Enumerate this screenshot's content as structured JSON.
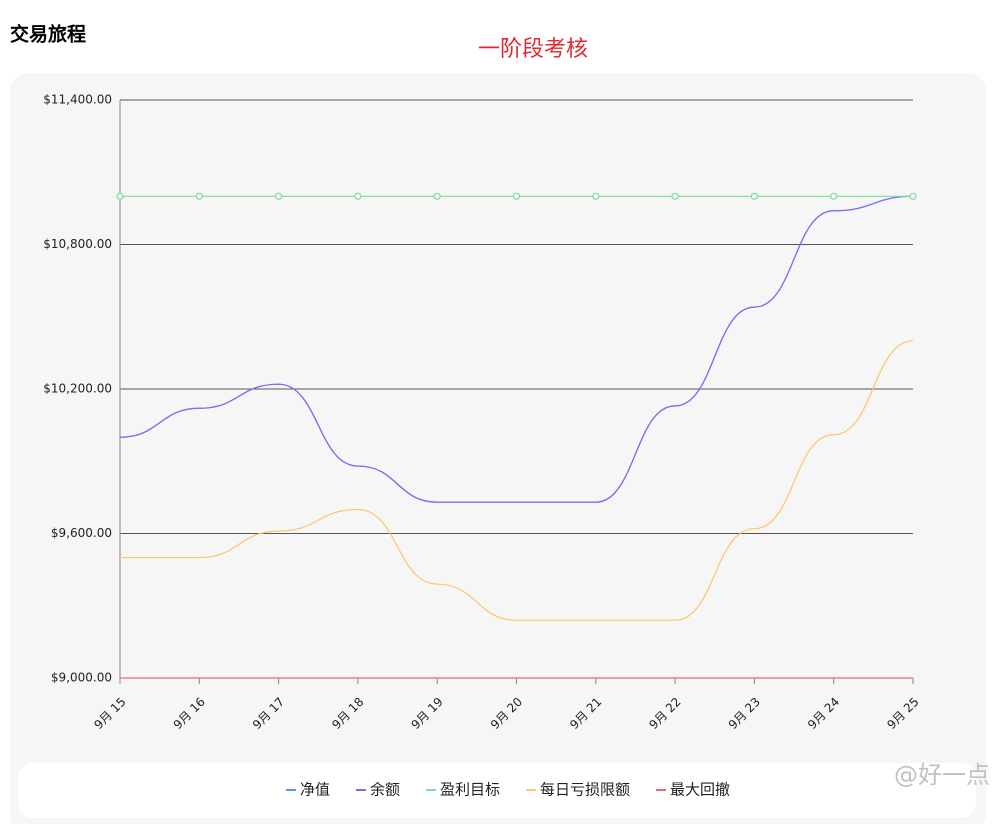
{
  "header": {
    "title": "交易旅程"
  },
  "chart_data": {
    "type": "line",
    "title": "一阶段考核",
    "categories": [
      "9月 15",
      "9月 16",
      "9月 17",
      "9月 18",
      "9月 19",
      "9月 20",
      "9月 21",
      "9月 22",
      "9月 23",
      "9月 24",
      "9月 25"
    ],
    "series": [
      {
        "name": "净值",
        "color": "#5b8ff9",
        "values": [
          10000,
          10120,
          10220,
          9880,
          9730,
          9730,
          9730,
          10130,
          10540,
          10940,
          11000
        ]
      },
      {
        "name": "余额",
        "color": "#7b6cf0",
        "values": [
          10000,
          10120,
          10220,
          9880,
          9730,
          9730,
          9730,
          10130,
          10540,
          10940,
          11000
        ]
      },
      {
        "name": "盈利目标",
        "color": "#7fdc9b",
        "values": [
          11000,
          11000,
          11000,
          11000,
          11000,
          11000,
          11000,
          11000,
          11000,
          11000,
          11000
        ],
        "markers": true
      },
      {
        "name": "每日亏损限额",
        "color": "#ffc46b",
        "values": [
          9500,
          9500,
          9610,
          9700,
          9390,
          9240,
          9240,
          9240,
          9620,
          10010,
          10400
        ]
      },
      {
        "name": "最大回撤",
        "color": "#f0686c",
        "values": [
          9000,
          9000,
          9000,
          9000,
          9000,
          9000,
          9000,
          9000,
          9000,
          9000,
          9000
        ]
      }
    ],
    "ylim": [
      9000,
      11400
    ],
    "yticks": [
      {
        "value": 9000,
        "label": "$9,000.00"
      },
      {
        "value": 9600,
        "label": "$9,600.00"
      },
      {
        "value": 10200,
        "label": "$10,200.00"
      },
      {
        "value": 10800,
        "label": "$10,800.00"
      },
      {
        "value": 11400,
        "label": "$11,400.00"
      }
    ],
    "grid": true,
    "legend": "bottom"
  },
  "watermark": "@好一点"
}
